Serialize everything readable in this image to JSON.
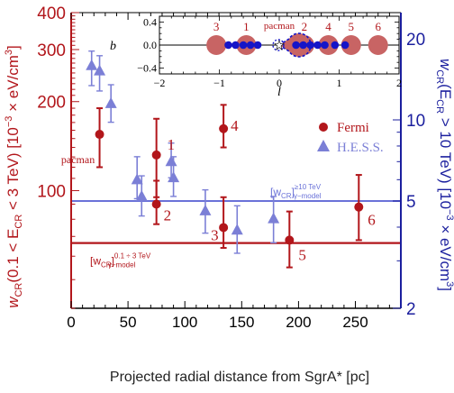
{
  "chart_data": {
    "type": "scatter",
    "xlabel": "Projected radial distance from SgrA* [pc]",
    "ylabel_left": {
      "prefix": "w",
      "sub": "CR",
      "mid": "(0.1 < E",
      "sub2": "CR",
      "rest": " < 3 TeV)  [10",
      "sup": "−3",
      "tail": " × eV/cm",
      "sup2": "3",
      "end": "]"
    },
    "ylabel_right": {
      "prefix": "w",
      "sub": "CR",
      "mid": "(E",
      "sub2": "CR",
      "rest": " > 10 TeV)  [10",
      "sup": "−3",
      "tail": " × eV/cm",
      "sup2": "3",
      "end": "]"
    },
    "xlim": [
      0,
      290
    ],
    "ylim_left": [
      40,
      400
    ],
    "ylim_right": [
      2,
      25
    ],
    "yscale": "log",
    "x_ticks": [
      0,
      50,
      100,
      150,
      200,
      250
    ],
    "y_left_ticks": [
      {
        "v": 100,
        "label": "100"
      },
      {
        "v": 200,
        "label": "200"
      },
      {
        "v": 300,
        "label": "300"
      },
      {
        "v": 400,
        "label": "400"
      }
    ],
    "y_right_ticks": [
      {
        "v": 2,
        "label": "2"
      },
      {
        "v": 5,
        "label": "5"
      },
      {
        "v": 10,
        "label": "10"
      },
      {
        "v": 20,
        "label": "20"
      }
    ],
    "series": [
      {
        "name": "Fermi",
        "color": "#b2161b",
        "marker": "circle",
        "axis": "left",
        "points": [
          {
            "x": 25,
            "y": 155,
            "lo": 120,
            "hi": 190,
            "label": "pacman"
          },
          {
            "x": 75,
            "y": 132,
            "lo": 95,
            "hi": 175,
            "label": "1"
          },
          {
            "x": 75,
            "y": 90,
            "lo": 77,
            "hi": 108,
            "label": "2"
          },
          {
            "x": 134,
            "y": 162,
            "lo": 140,
            "hi": 195,
            "label": "4"
          },
          {
            "x": 134,
            "y": 75,
            "lo": 64,
            "hi": 95,
            "label": "3"
          },
          {
            "x": 192,
            "y": 68,
            "lo": 55,
            "hi": 85,
            "label": "5"
          },
          {
            "x": 253,
            "y": 88,
            "lo": 68,
            "hi": 113,
            "label": "6"
          }
        ]
      },
      {
        "name": "H.E.S.S.",
        "color": "#7b7fd6",
        "marker": "triangle",
        "axis": "right",
        "points": [
          {
            "x": 18,
            "y": 15.9,
            "lo": 13.4,
            "hi": 18.0
          },
          {
            "x": 25,
            "y": 15.2,
            "lo": 12.8,
            "hi": 17.3
          },
          {
            "x": 35,
            "y": 11.5,
            "lo": 9.8,
            "hi": 13.5
          },
          {
            "x": 58,
            "y": 6.0,
            "lo": 5.1,
            "hi": 7.3
          },
          {
            "x": 62,
            "y": 5.2,
            "lo": 4.4,
            "hi": 6.2
          },
          {
            "x": 88,
            "y": 7.0,
            "lo": 6.1,
            "hi": 8.2
          },
          {
            "x": 90,
            "y": 6.1,
            "lo": 5.2,
            "hi": 7.3
          },
          {
            "x": 118,
            "y": 4.6,
            "lo": 3.8,
            "hi": 5.5
          },
          {
            "x": 146,
            "y": 3.9,
            "lo": 3.2,
            "hi": 4.8
          },
          {
            "x": 178,
            "y": 4.3,
            "lo": 3.5,
            "hi": 5.2
          }
        ]
      }
    ],
    "reference_lines": [
      {
        "axis": "right",
        "value": 5.0,
        "color": "#6a72d8",
        "label_main": "[w",
        "label_sub": "CR",
        "label_close": "]",
        "label_sup": "≥10 TeV",
        "label_subr": "γ−model"
      },
      {
        "axis": "left",
        "value": 66.5,
        "color": "#b2161b",
        "label_main": "[w",
        "label_sub": "CR",
        "label_close": "]",
        "label_sup": "0.1 ÷ 3 TeV",
        "label_subr": "γ−model"
      }
    ],
    "legend": {
      "placement": "right, below inset",
      "entries": [
        {
          "name": "Fermi",
          "marker": "circle",
          "color": "#b2161b"
        },
        {
          "name": "H.E.S.S.",
          "marker": "triangle",
          "color": "#7b7fd6"
        }
      ]
    }
  },
  "inset": {
    "ylabel": "b",
    "xlabel": "l",
    "xlim": [
      -2,
      2
    ],
    "ylim": [
      -0.5,
      0.5
    ],
    "x_ticks": [
      {
        "v": -2,
        "label": "−2"
      },
      {
        "v": -1,
        "label": "−1"
      },
      {
        "v": 0,
        "label": "0"
      },
      {
        "v": 1,
        "label": "1"
      },
      {
        "v": 2,
        "label": "2"
      }
    ],
    "y_ticks": [
      {
        "v": 0.4,
        "label": "0.4"
      },
      {
        "v": 0.0,
        "label": "0.0"
      },
      {
        "v": -0.4,
        "label": "−0.4"
      }
    ],
    "regions": [
      {
        "label": "3",
        "l": -1.05
      },
      {
        "label": "1",
        "l": -0.55
      },
      {
        "label": "2",
        "l": 0.42
      },
      {
        "label": "4",
        "l": 0.82
      },
      {
        "label": "5",
        "l": 1.2
      },
      {
        "label": "6",
        "l": 1.65
      }
    ],
    "pacman_label": "pacman",
    "region_color": "#c86464",
    "blue_dots_l": [
      -0.85,
      -0.73,
      -0.6,
      -0.48,
      -0.36,
      0.28,
      0.4,
      0.52,
      0.64,
      0.76,
      0.93,
      1.1
    ],
    "blue_color": "#1515c8"
  }
}
